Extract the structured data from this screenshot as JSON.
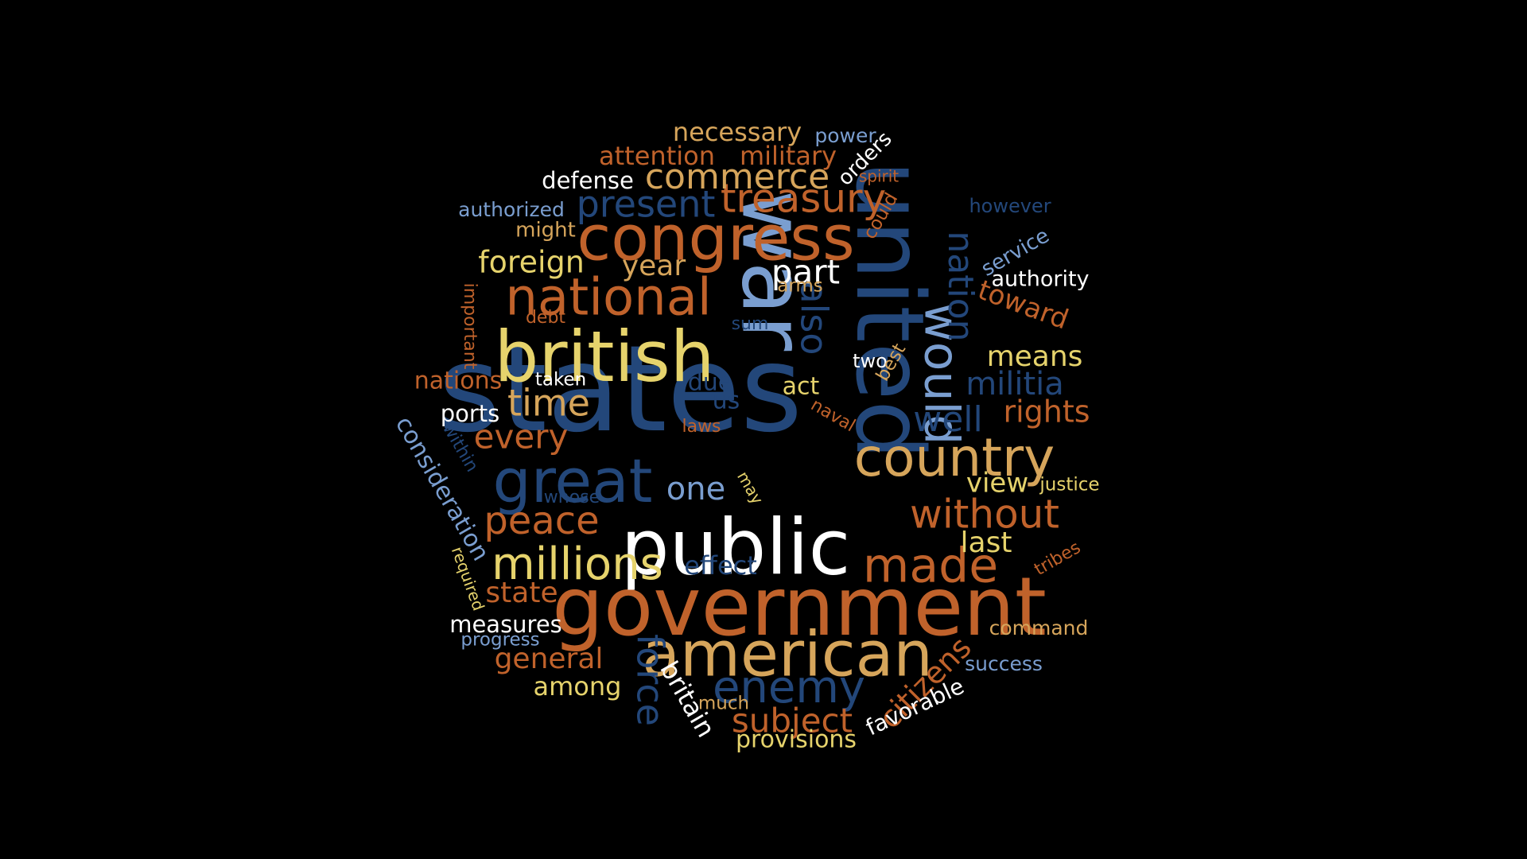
{
  "colors": {
    "background": "#000000",
    "dark_blue": "#23477a",
    "light_blue": "#7a9ed0",
    "orange": "#c0622b",
    "tan": "#d6a55b",
    "yellow": "#e6d36c",
    "white": "#ffffff"
  },
  "words": [
    {
      "text": "states",
      "color": "dark_blue",
      "weight": 100,
      "rot": 0
    },
    {
      "text": "united",
      "color": "dark_blue",
      "weight": 80,
      "rot": 90
    },
    {
      "text": "war",
      "color": "light_blue",
      "weight": 78,
      "rot": 90
    },
    {
      "text": "government",
      "color": "orange",
      "weight": 72,
      "rot": 0
    },
    {
      "text": "public",
      "color": "white",
      "weight": 65,
      "rot": 0
    },
    {
      "text": "british",
      "color": "yellow",
      "weight": 62,
      "rot": 0
    },
    {
      "text": "american",
      "color": "tan",
      "weight": 58,
      "rot": 0
    },
    {
      "text": "congress",
      "color": "orange",
      "weight": 54,
      "rot": 0
    },
    {
      "text": "great",
      "color": "dark_blue",
      "weight": 50,
      "rot": 0
    },
    {
      "text": "country",
      "color": "tan",
      "weight": 46,
      "rot": 0
    },
    {
      "text": "national",
      "color": "orange",
      "weight": 44,
      "rot": 0
    },
    {
      "text": "would",
      "color": "light_blue",
      "weight": 42,
      "rot": 90
    },
    {
      "text": "made",
      "color": "orange",
      "weight": 42,
      "rot": 0
    },
    {
      "text": "enemy",
      "color": "dark_blue",
      "weight": 40,
      "rot": 0
    },
    {
      "text": "millions",
      "color": "yellow",
      "weight": 40,
      "rot": 0
    },
    {
      "text": "without",
      "color": "orange",
      "weight": 36,
      "rot": 0
    },
    {
      "text": "treasury",
      "color": "orange",
      "weight": 34,
      "rot": 0
    },
    {
      "text": "peace",
      "color": "orange",
      "weight": 34,
      "rot": 0
    },
    {
      "text": "present",
      "color": "dark_blue",
      "weight": 33,
      "rot": 0
    },
    {
      "text": "force",
      "color": "dark_blue",
      "weight": 33,
      "rot": 90
    },
    {
      "text": "also",
      "color": "dark_blue",
      "weight": 33,
      "rot": 90
    },
    {
      "text": "nation",
      "color": "dark_blue",
      "weight": 32,
      "rot": 90
    },
    {
      "text": "time",
      "color": "tan",
      "weight": 32,
      "rot": 0
    },
    {
      "text": "well",
      "color": "dark_blue",
      "weight": 32,
      "rot": 0
    },
    {
      "text": "commerce",
      "color": "tan",
      "weight": 31,
      "rot": 0
    },
    {
      "text": "subject",
      "color": "orange",
      "weight": 30,
      "rot": 0
    },
    {
      "text": "part",
      "color": "white",
      "weight": 30,
      "rot": 0
    },
    {
      "text": "every",
      "color": "orange",
      "weight": 30,
      "rot": 0
    },
    {
      "text": "militia",
      "color": "dark_blue",
      "weight": 29,
      "rot": 0
    },
    {
      "text": "one",
      "color": "light_blue",
      "weight": 29,
      "rot": 0
    },
    {
      "text": "rights",
      "color": "orange",
      "weight": 28,
      "rot": 0
    },
    {
      "text": "citizens",
      "color": "orange",
      "weight": 28,
      "rot": -45
    },
    {
      "text": "foreign",
      "color": "yellow",
      "weight": 27,
      "rot": 0
    },
    {
      "text": "year",
      "color": "tan",
      "weight": 26,
      "rot": 0
    },
    {
      "text": "means",
      "color": "yellow",
      "weight": 26,
      "rot": 0
    },
    {
      "text": "general",
      "color": "orange",
      "weight": 26,
      "rot": 0
    },
    {
      "text": "last",
      "color": "yellow",
      "weight": 26,
      "rot": 0
    },
    {
      "text": "state",
      "color": "orange",
      "weight": 26,
      "rot": 0
    },
    {
      "text": "view",
      "color": "yellow",
      "weight": 25,
      "rot": 0
    },
    {
      "text": "toward",
      "color": "orange",
      "weight": 25,
      "rot": 20
    },
    {
      "text": "necessary",
      "color": "tan",
      "weight": 24,
      "rot": 0
    },
    {
      "text": "attention",
      "color": "orange",
      "weight": 24,
      "rot": 0
    },
    {
      "text": "military",
      "color": "orange",
      "weight": 24,
      "rot": 0
    },
    {
      "text": "among",
      "color": "yellow",
      "weight": 24,
      "rot": 0
    },
    {
      "text": "effect",
      "color": "dark_blue",
      "weight": 24,
      "rot": 0
    },
    {
      "text": "britain",
      "color": "white",
      "weight": 24,
      "rot": 60
    },
    {
      "text": "provisions",
      "color": "yellow",
      "weight": 23,
      "rot": 0
    },
    {
      "text": "consideration",
      "color": "light_blue",
      "weight": 23,
      "rot": 60
    },
    {
      "text": "nations",
      "color": "orange",
      "weight": 23,
      "rot": 0
    },
    {
      "text": "act",
      "color": "yellow",
      "weight": 23,
      "rot": 0
    },
    {
      "text": "due",
      "color": "dark_blue",
      "weight": 23,
      "rot": 0
    },
    {
      "text": "us",
      "color": "dark_blue",
      "weight": 23,
      "rot": 0
    },
    {
      "text": "defense",
      "color": "white",
      "weight": 22,
      "rot": 0
    },
    {
      "text": "ports",
      "color": "white",
      "weight": 22,
      "rot": 0
    },
    {
      "text": "measures",
      "color": "white",
      "weight": 22,
      "rot": 0
    },
    {
      "text": "favorable",
      "color": "white",
      "weight": 22,
      "rot": -25
    },
    {
      "text": "authority",
      "color": "white",
      "weight": 21,
      "rot": 0
    },
    {
      "text": "orders",
      "color": "white",
      "weight": 20,
      "rot": -45
    },
    {
      "text": "might",
      "color": "tan",
      "weight": 20,
      "rot": 0
    },
    {
      "text": "service",
      "color": "light_blue",
      "weight": 20,
      "rot": -30
    },
    {
      "text": "command",
      "color": "tan",
      "weight": 19,
      "rot": 0
    },
    {
      "text": "success",
      "color": "light_blue",
      "weight": 19,
      "rot": 0
    },
    {
      "text": "power",
      "color": "light_blue",
      "weight": 19,
      "rot": 0
    },
    {
      "text": "authorized",
      "color": "light_blue",
      "weight": 19,
      "rot": 0
    },
    {
      "text": "however",
      "color": "dark_blue",
      "weight": 19,
      "rot": 0
    },
    {
      "text": "two",
      "color": "white",
      "weight": 19,
      "rot": 0
    },
    {
      "text": "taken",
      "color": "white",
      "weight": 18,
      "rot": 0
    },
    {
      "text": "progress",
      "color": "light_blue",
      "weight": 18,
      "rot": 0
    },
    {
      "text": "arms",
      "color": "tan",
      "weight": 18,
      "rot": 0
    },
    {
      "text": "could",
      "color": "orange",
      "weight": 18,
      "rot": -60
    },
    {
      "text": "justice",
      "color": "yellow",
      "weight": 18,
      "rot": 0
    },
    {
      "text": "best",
      "color": "tan",
      "weight": 18,
      "rot": -60
    },
    {
      "text": "much",
      "color": "tan",
      "weight": 18,
      "rot": 0
    },
    {
      "text": "important",
      "color": "orange",
      "weight": 17,
      "rot": 90
    },
    {
      "text": "debt",
      "color": "orange",
      "weight": 17,
      "rot": 0
    },
    {
      "text": "sum",
      "color": "dark_blue",
      "weight": 17,
      "rot": 0
    },
    {
      "text": "laws",
      "color": "orange",
      "weight": 17,
      "rot": 0
    },
    {
      "text": "naval",
      "color": "orange",
      "weight": 17,
      "rot": 30
    },
    {
      "text": "within",
      "color": "dark_blue",
      "weight": 17,
      "rot": 60
    },
    {
      "text": "whose",
      "color": "dark_blue",
      "weight": 17,
      "rot": 0
    },
    {
      "text": "may",
      "color": "yellow",
      "weight": 16,
      "rot": 60
    },
    {
      "text": "required",
      "color": "yellow",
      "weight": 16,
      "rot": 70
    },
    {
      "text": "tribes",
      "color": "orange",
      "weight": 17,
      "rot": -30
    },
    {
      "text": "spirit",
      "color": "orange",
      "weight": 16,
      "rot": 0
    }
  ]
}
